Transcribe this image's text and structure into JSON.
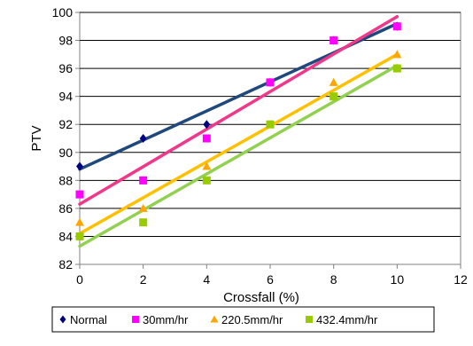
{
  "chart_data": {
    "type": "scatter",
    "title": "",
    "xlabel": "Crossfall (%)",
    "ylabel": "PTV",
    "xlim": [
      0,
      12
    ],
    "ylim": [
      82,
      100
    ],
    "xticks": [
      "0",
      "2",
      "4",
      "6",
      "8",
      "10",
      "12"
    ],
    "yticks": [
      "82",
      "84",
      "86",
      "88",
      "90",
      "92",
      "94",
      "96",
      "98",
      "100"
    ],
    "grid": "horizontal",
    "legend_position": "bottom",
    "series": [
      {
        "name": "Normal",
        "marker": "diamond",
        "color": "#000080",
        "trend_color": "#1f497d",
        "points": [
          [
            0,
            89
          ],
          [
            2,
            91
          ],
          [
            4,
            92
          ],
          [
            6,
            95
          ],
          [
            8,
            98
          ],
          [
            10,
            99
          ]
        ],
        "trendline": [
          [
            0,
            88.8
          ],
          [
            10,
            99.2
          ]
        ]
      },
      {
        "name": "30mm/hr",
        "marker": "square",
        "color": "#ff00ff",
        "trend_color": "#f0388a",
        "points": [
          [
            0,
            87
          ],
          [
            2,
            88
          ],
          [
            4,
            91
          ],
          [
            6,
            95
          ],
          [
            8,
            98
          ],
          [
            10,
            99
          ]
        ],
        "trendline": [
          [
            0,
            86.3
          ],
          [
            10,
            99.7
          ]
        ]
      },
      {
        "name": "220.5mm/hr",
        "marker": "triangle",
        "color": "#ffa500",
        "trend_color": "#ffc000",
        "points": [
          [
            0,
            85
          ],
          [
            2,
            86
          ],
          [
            4,
            89
          ],
          [
            6,
            92
          ],
          [
            8,
            95
          ],
          [
            10,
            97
          ]
        ],
        "trendline": [
          [
            0,
            84.2
          ],
          [
            10,
            97.0
          ]
        ]
      },
      {
        "name": "432.4mm/hr",
        "marker": "square",
        "color": "#99cc00",
        "trend_color": "#92d050",
        "points": [
          [
            0,
            84
          ],
          [
            2,
            85
          ],
          [
            4,
            88
          ],
          [
            6,
            92
          ],
          [
            8,
            94
          ],
          [
            10,
            96
          ]
        ],
        "trendline": [
          [
            0,
            83.3
          ],
          [
            10,
            96.2
          ]
        ]
      }
    ]
  }
}
